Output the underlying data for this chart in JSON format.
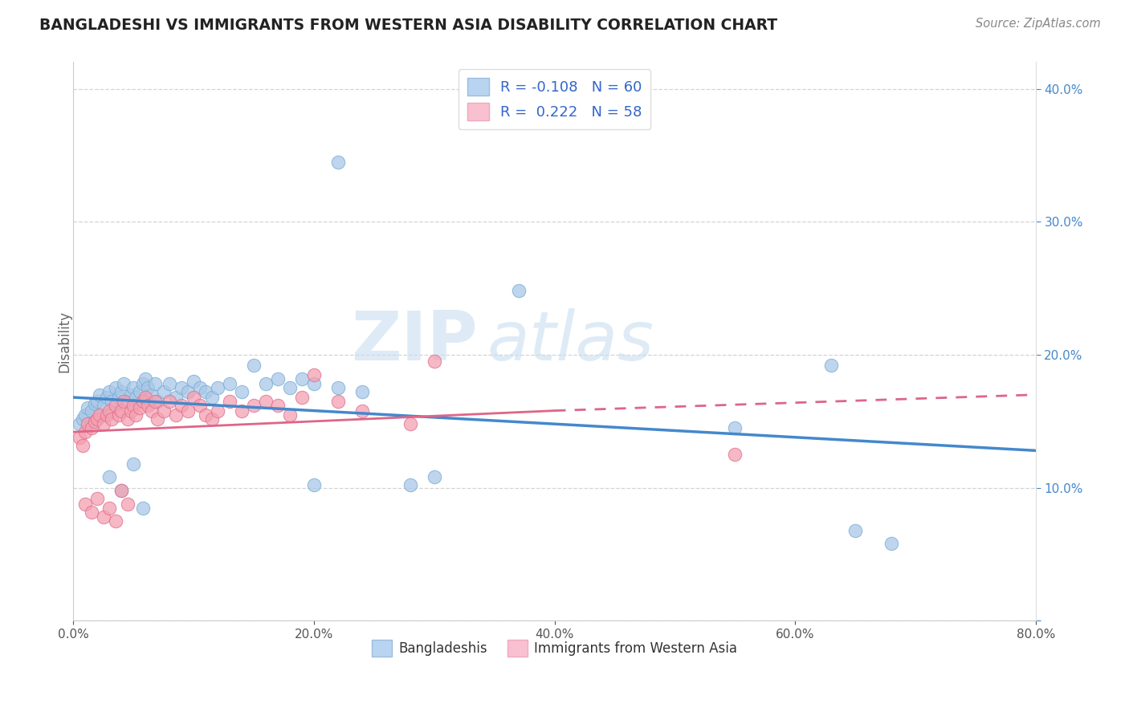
{
  "title": "BANGLADESHI VS IMMIGRANTS FROM WESTERN ASIA DISABILITY CORRELATION CHART",
  "source": "Source: ZipAtlas.com",
  "ylabel": "Disability",
  "xlim": [
    0.0,
    0.8
  ],
  "ylim": [
    0.0,
    0.42
  ],
  "xticks": [
    0.0,
    0.2,
    0.4,
    0.6,
    0.8
  ],
  "xticklabels": [
    "0.0%",
    "",
    "",
    "",
    "80.0%"
  ],
  "yticks_left": [
    0.0,
    0.1,
    0.2,
    0.3,
    0.4
  ],
  "ytick_left_labels": [
    "",
    "",
    "",
    "",
    ""
  ],
  "yticks_right": [
    0.1,
    0.2,
    0.3,
    0.4
  ],
  "ytick_right_labels": [
    "10.0%",
    "20.0%",
    "30.0%",
    "40.0%"
  ],
  "legend_R_blue": "-0.108",
  "legend_N_blue": "60",
  "legend_R_pink": "0.222",
  "legend_N_pink": "58",
  "blue_color": "#a8c8e8",
  "blue_edge_color": "#7aadd4",
  "pink_color": "#f4a0b0",
  "pink_edge_color": "#e07090",
  "blue_line_color": "#4488cc",
  "pink_line_color": "#dd6688",
  "watermark_zip": "ZIP",
  "watermark_atlas": "atlas",
  "background_color": "#ffffff",
  "grid_color": "#d0d0d0",
  "blue_scatter": [
    [
      0.005,
      0.148
    ],
    [
      0.008,
      0.152
    ],
    [
      0.01,
      0.155
    ],
    [
      0.012,
      0.16
    ],
    [
      0.015,
      0.158
    ],
    [
      0.018,
      0.163
    ],
    [
      0.02,
      0.165
    ],
    [
      0.022,
      0.17
    ],
    [
      0.025,
      0.162
    ],
    [
      0.028,
      0.168
    ],
    [
      0.03,
      0.172
    ],
    [
      0.032,
      0.165
    ],
    [
      0.035,
      0.175
    ],
    [
      0.038,
      0.168
    ],
    [
      0.04,
      0.172
    ],
    [
      0.042,
      0.178
    ],
    [
      0.045,
      0.165
    ],
    [
      0.048,
      0.17
    ],
    [
      0.05,
      0.175
    ],
    [
      0.052,
      0.168
    ],
    [
      0.055,
      0.172
    ],
    [
      0.058,
      0.178
    ],
    [
      0.06,
      0.182
    ],
    [
      0.062,
      0.175
    ],
    [
      0.065,
      0.17
    ],
    [
      0.068,
      0.178
    ],
    [
      0.07,
      0.165
    ],
    [
      0.075,
      0.172
    ],
    [
      0.08,
      0.178
    ],
    [
      0.085,
      0.168
    ],
    [
      0.09,
      0.175
    ],
    [
      0.095,
      0.172
    ],
    [
      0.1,
      0.18
    ],
    [
      0.105,
      0.175
    ],
    [
      0.11,
      0.172
    ],
    [
      0.115,
      0.168
    ],
    [
      0.12,
      0.175
    ],
    [
      0.13,
      0.178
    ],
    [
      0.14,
      0.172
    ],
    [
      0.15,
      0.192
    ],
    [
      0.16,
      0.178
    ],
    [
      0.17,
      0.182
    ],
    [
      0.18,
      0.175
    ],
    [
      0.19,
      0.182
    ],
    [
      0.2,
      0.178
    ],
    [
      0.22,
      0.175
    ],
    [
      0.24,
      0.172
    ],
    [
      0.03,
      0.108
    ],
    [
      0.04,
      0.098
    ],
    [
      0.05,
      0.118
    ],
    [
      0.28,
      0.102
    ],
    [
      0.3,
      0.108
    ],
    [
      0.22,
      0.345
    ],
    [
      0.37,
      0.248
    ],
    [
      0.55,
      0.145
    ],
    [
      0.63,
      0.192
    ],
    [
      0.65,
      0.068
    ],
    [
      0.68,
      0.058
    ],
    [
      0.2,
      0.102
    ],
    [
      0.058,
      0.085
    ]
  ],
  "pink_scatter": [
    [
      0.005,
      0.138
    ],
    [
      0.008,
      0.132
    ],
    [
      0.01,
      0.142
    ],
    [
      0.012,
      0.148
    ],
    [
      0.015,
      0.145
    ],
    [
      0.018,
      0.15
    ],
    [
      0.02,
      0.152
    ],
    [
      0.022,
      0.155
    ],
    [
      0.025,
      0.148
    ],
    [
      0.028,
      0.155
    ],
    [
      0.03,
      0.158
    ],
    [
      0.032,
      0.152
    ],
    [
      0.035,
      0.162
    ],
    [
      0.038,
      0.155
    ],
    [
      0.04,
      0.158
    ],
    [
      0.042,
      0.165
    ],
    [
      0.045,
      0.152
    ],
    [
      0.048,
      0.158
    ],
    [
      0.05,
      0.162
    ],
    [
      0.052,
      0.155
    ],
    [
      0.055,
      0.16
    ],
    [
      0.058,
      0.165
    ],
    [
      0.06,
      0.168
    ],
    [
      0.062,
      0.162
    ],
    [
      0.065,
      0.158
    ],
    [
      0.068,
      0.165
    ],
    [
      0.07,
      0.152
    ],
    [
      0.075,
      0.158
    ],
    [
      0.08,
      0.165
    ],
    [
      0.085,
      0.155
    ],
    [
      0.09,
      0.162
    ],
    [
      0.095,
      0.158
    ],
    [
      0.1,
      0.168
    ],
    [
      0.105,
      0.162
    ],
    [
      0.11,
      0.155
    ],
    [
      0.115,
      0.152
    ],
    [
      0.12,
      0.158
    ],
    [
      0.13,
      0.165
    ],
    [
      0.14,
      0.158
    ],
    [
      0.15,
      0.162
    ],
    [
      0.16,
      0.165
    ],
    [
      0.17,
      0.162
    ],
    [
      0.18,
      0.155
    ],
    [
      0.19,
      0.168
    ],
    [
      0.2,
      0.185
    ],
    [
      0.22,
      0.165
    ],
    [
      0.24,
      0.158
    ],
    [
      0.01,
      0.088
    ],
    [
      0.015,
      0.082
    ],
    [
      0.02,
      0.092
    ],
    [
      0.025,
      0.078
    ],
    [
      0.03,
      0.085
    ],
    [
      0.035,
      0.075
    ],
    [
      0.04,
      0.098
    ],
    [
      0.045,
      0.088
    ],
    [
      0.28,
      0.148
    ],
    [
      0.3,
      0.195
    ],
    [
      0.55,
      0.125
    ]
  ],
  "blue_trendline": [
    0.0,
    0.8,
    0.168,
    0.128
  ],
  "pink_trendline_solid": [
    0.0,
    0.4,
    0.142,
    0.158
  ],
  "pink_trendline_dashed": [
    0.4,
    0.8,
    0.158,
    0.17
  ]
}
